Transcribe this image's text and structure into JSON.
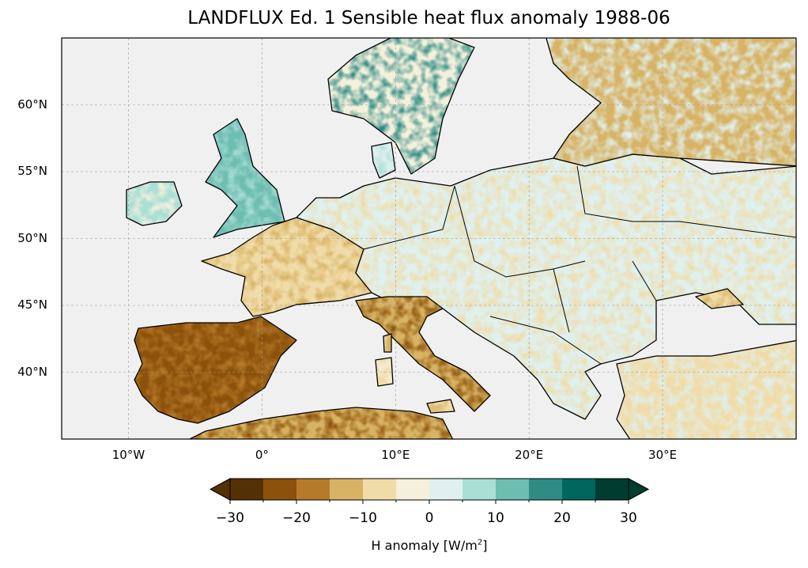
{
  "title": "LANDFLUX Ed. 1 Sensible heat flux anomaly 1988-06",
  "map": {
    "extent_lon": [
      -15,
      40
    ],
    "extent_lat": [
      35,
      65
    ],
    "lat_ticks": [
      {
        "value": 60,
        "label": "60°N"
      },
      {
        "value": 55,
        "label": "55°N"
      },
      {
        "value": 50,
        "label": "50°N"
      },
      {
        "value": 45,
        "label": "45°N"
      },
      {
        "value": 40,
        "label": "40°N"
      }
    ],
    "lon_ticks": [
      {
        "value": -10,
        "label": "10°W"
      },
      {
        "value": 0,
        "label": "0°"
      },
      {
        "value": 10,
        "label": "10°E"
      },
      {
        "value": 20,
        "label": "20°E"
      },
      {
        "value": 30,
        "label": "30°E"
      }
    ],
    "ocean_color": "#f0f0f0"
  },
  "colorbar": {
    "label_prefix": "H anomaly [W/m",
    "label_sup": "2",
    "label_suffix": "]",
    "levels": [
      -30,
      -25,
      -20,
      -15,
      -10,
      -5,
      0,
      5,
      10,
      15,
      20,
      25,
      30
    ],
    "tick_labels": [
      "−30",
      "−20",
      "−10",
      "0",
      "10",
      "20",
      "30"
    ],
    "colors": [
      "#543005",
      "#8c510a",
      "#b67a2a",
      "#d8b365",
      "#f0dca8",
      "#f5f0dc",
      "#dff0ee",
      "#aadfd6",
      "#6ebdb1",
      "#2e8c84",
      "#00665e",
      "#003c30"
    ],
    "extend": "both"
  }
}
